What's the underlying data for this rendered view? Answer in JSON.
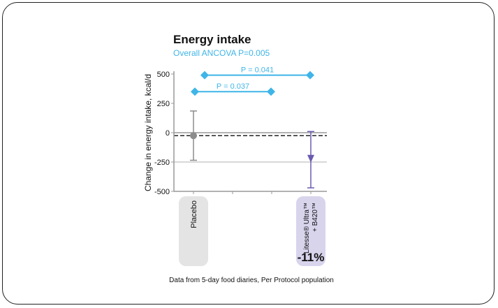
{
  "chart_data": {
    "type": "scatter",
    "title": "Energy intake",
    "subtitle": "Overall ANCOVA P=0.005",
    "ylabel": "Change in energy intake, kcal/d",
    "ylim": [
      -500,
      500
    ],
    "yticks": [
      "500",
      "250",
      "0",
      "-250",
      "-500"
    ],
    "ytick_values": [
      500,
      250,
      0,
      -250,
      -500
    ],
    "reference_line": -25,
    "groups": [
      {
        "name": "Placebo",
        "mean": -25,
        "err_high": 185,
        "err_low": -235,
        "color": "#8c8c8c",
        "label_bg": "#e4e4e4",
        "marker": "circle",
        "slot": 0
      },
      {
        "name": "Litesse® Ultra™ + B420™",
        "name_line1": "Litesse® Ultra™",
        "name_line2": "+ B420™",
        "mean": -225,
        "err_high": 10,
        "err_low": -470,
        "color": "#6a5ab0",
        "label_bg": "#d8d4ec",
        "marker": "triangle-down",
        "slot": 3,
        "percent": "-11%"
      }
    ],
    "comparisons": [
      {
        "label": "P = 0.037",
        "y": 350,
        "from_slot": 0,
        "to_slot": 2
      },
      {
        "label": "P = 0.041",
        "y": 490,
        "from_slot": 0.25,
        "to_slot": 3
      }
    ],
    "accent": "#3fb5e8"
  },
  "footnote": "Data from 5-day food diaries, Per Protocol population"
}
